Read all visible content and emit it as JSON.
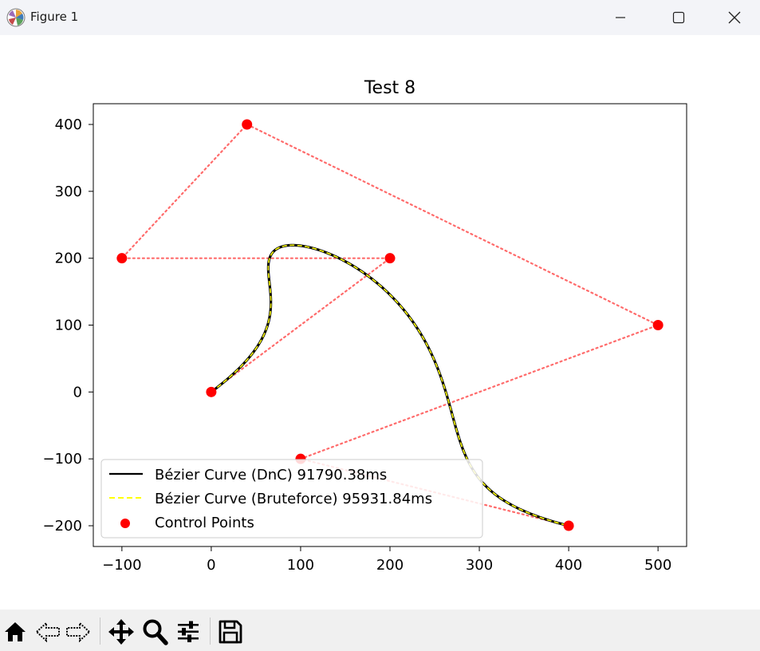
{
  "window": {
    "title": "Figure 1",
    "icon": "matplotlib-logo-icon",
    "controls": [
      "minimize-icon",
      "maximize-icon",
      "close-icon"
    ]
  },
  "toolbar": {
    "buttons": [
      "home-icon",
      "back-arrow-icon",
      "forward-arrow-icon",
      "pan-icon",
      "zoom-icon",
      "configure-subplots-icon",
      "save-icon"
    ]
  },
  "chart_data": {
    "type": "line",
    "title": "Test 8",
    "xlabel": "",
    "ylabel": "",
    "xlim": [
      -132,
      532
    ],
    "ylim": [
      -231,
      431
    ],
    "xticks": [
      -100,
      0,
      100,
      200,
      300,
      400,
      500
    ],
    "yticks": [
      -200,
      -100,
      0,
      100,
      200,
      300,
      400
    ],
    "xtick_labels": [
      "−100",
      "0",
      "100",
      "200",
      "300",
      "400",
      "500"
    ],
    "ytick_labels": [
      "−200",
      "−100",
      "0",
      "100",
      "200",
      "300",
      "400"
    ],
    "control_points": {
      "x": [
        0,
        200,
        -100,
        40,
        500,
        100,
        400
      ],
      "y": [
        0,
        200,
        200,
        400,
        100,
        -100,
        -200
      ]
    },
    "series": [
      {
        "name": "Bézier Curve (DnC) 91790.38ms",
        "color": "#000000",
        "style": "solid"
      },
      {
        "name": "Bézier Curve (Bruteforce) 95931.84ms",
        "color": "#ffff00",
        "style": "dashed"
      },
      {
        "name": "Control Points",
        "color": "#ff0000",
        "style": "marker"
      }
    ],
    "control_polygon": {
      "color": "#ff6b6b",
      "style": "dotted"
    },
    "grid": false,
    "legend_position": "lower-left"
  }
}
